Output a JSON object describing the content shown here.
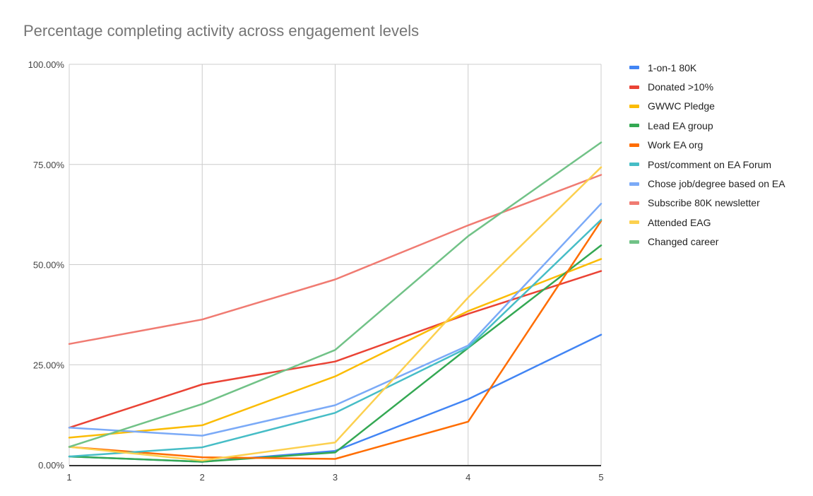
{
  "chart_data": {
    "type": "line",
    "title": "Percentage completing activity across engagement levels",
    "xlabel": "",
    "ylabel": "",
    "x": [
      1,
      2,
      3,
      4,
      5
    ],
    "x_tick_labels": [
      "1",
      "2",
      "3",
      "4",
      "5"
    ],
    "ylim": [
      0,
      100
    ],
    "y_ticks": [
      0,
      25,
      50,
      75,
      100
    ],
    "y_tick_labels": [
      "0.00%",
      "25.00%",
      "50.00%",
      "75.00%",
      "100.00%"
    ],
    "grid": true,
    "legend_position": "right",
    "series": [
      {
        "name": "1-on-1 80K",
        "color": "#4285F4",
        "values": [
          2.1,
          0.8,
          3.5,
          16.4,
          32.5
        ]
      },
      {
        "name": "Donated >10%",
        "color": "#EA4335",
        "values": [
          9.3,
          20.1,
          25.8,
          37.7,
          48.4
        ]
      },
      {
        "name": "GWWC Pledge",
        "color": "#FBBC04",
        "values": [
          6.8,
          9.9,
          22.1,
          38.4,
          51.4
        ]
      },
      {
        "name": "Lead EA group",
        "color": "#34A853",
        "values": [
          2.1,
          0.8,
          3.1,
          29.2,
          54.8
        ]
      },
      {
        "name": "Work EA org",
        "color": "#FF6D01",
        "values": [
          4.5,
          1.9,
          1.5,
          10.8,
          60.9
        ]
      },
      {
        "name": "Post/comment on EA Forum",
        "color": "#46BDC6",
        "values": [
          2.1,
          4.4,
          13.0,
          29.3,
          61.2
        ]
      },
      {
        "name": "Chose job/degree based on EA",
        "color": "#7BAAF7",
        "values": [
          9.3,
          7.3,
          14.9,
          29.8,
          65.2
        ]
      },
      {
        "name": "Subscribe 80K newsletter",
        "color": "#F07B72",
        "values": [
          30.2,
          36.3,
          46.3,
          59.8,
          72.4
        ]
      },
      {
        "name": "Attended EAG",
        "color": "#FCD04F",
        "values": [
          4.5,
          1.1,
          5.6,
          41.8,
          74.3
        ]
      },
      {
        "name": "Changed career",
        "color": "#71C287",
        "values": [
          4.5,
          15.2,
          28.7,
          57.1,
          80.5
        ]
      }
    ]
  }
}
